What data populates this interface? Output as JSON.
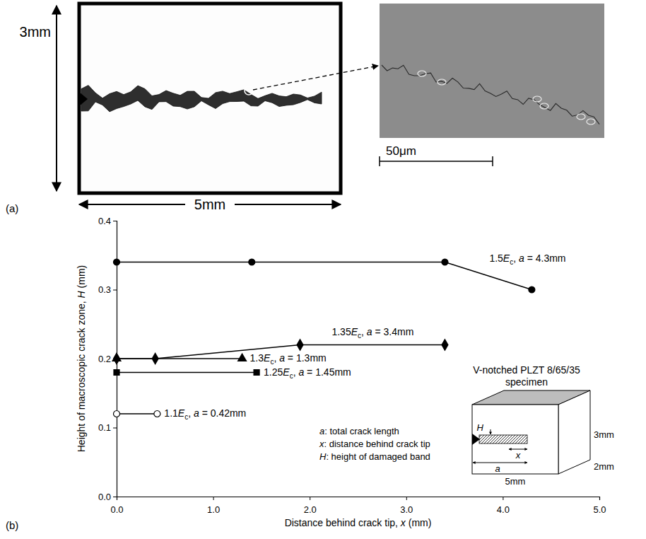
{
  "panel_a": {
    "label": "(a)",
    "height_label": "3mm",
    "width_label": "5mm",
    "scale_bar_label": "50μm"
  },
  "chart_data": {
    "type": "line",
    "panel_label": "(b)",
    "x_label": "Distance behind crack tip, x (mm)",
    "y_label": "Height of macroscopic crack zone, H (mm)",
    "xlim": [
      0,
      5
    ],
    "xticks": [
      {
        "value": 0,
        "label": "0.0"
      },
      {
        "value": 1,
        "label": "1.0"
      },
      {
        "value": 2,
        "label": "2.0"
      },
      {
        "value": 3,
        "label": "3.0"
      },
      {
        "value": 4,
        "label": "4.0"
      },
      {
        "value": 5,
        "label": "5.0"
      }
    ],
    "ylim": [
      0,
      0.4
    ],
    "yticks": [
      {
        "value": 0,
        "label": "0.0"
      },
      0.1,
      0.2,
      0.3,
      0.4
    ],
    "grid": false,
    "series": [
      {
        "name": "1.5Ec, a = 4.3mm",
        "color": "#000000",
        "marker": "circle",
        "line_style": "solid",
        "x": [
          0,
          1.4,
          3.4,
          4.3
        ],
        "values": [
          0.34,
          0.34,
          0.34,
          0.3
        ]
      },
      {
        "name": "1.35Ec, a = 3.4mm",
        "color": "#000000",
        "marker": "diamond",
        "line_style": "solid",
        "x": [
          0,
          0.4,
          1.9,
          3.4
        ],
        "values": [
          0.2,
          0.2,
          0.22,
          0.22
        ]
      },
      {
        "name": "1.3Ec, a = 1.3mm",
        "color": "#000000",
        "marker": "triangle",
        "line_style": "solid",
        "x": [
          0,
          1.3
        ],
        "values": [
          0.2,
          0.2
        ]
      },
      {
        "name": "1.25Ec, a = 1.45mm",
        "color": "#000000",
        "marker": "square",
        "line_style": "solid",
        "x": [
          0,
          1.45
        ],
        "values": [
          0.18,
          0.18
        ]
      },
      {
        "name": "1.1Ec, a = 0.42mm",
        "color": "#000000",
        "marker": "open-circle",
        "line_style": "solid",
        "x": [
          0,
          0.42
        ],
        "values": [
          0.12,
          0.12
        ]
      }
    ],
    "inset": {
      "title": [
        "V-notched PLZT 8/65/35",
        "specimen"
      ],
      "height_label": "3mm",
      "depth_label": "2mm",
      "width_label": "5mm",
      "crack_height_symbol": "H",
      "crack_length_symbol": "a",
      "distance_symbol": "x"
    },
    "notes": [
      "a: total crack length",
      "x: distance behind crack tip",
      "H: height of damaged band"
    ]
  }
}
